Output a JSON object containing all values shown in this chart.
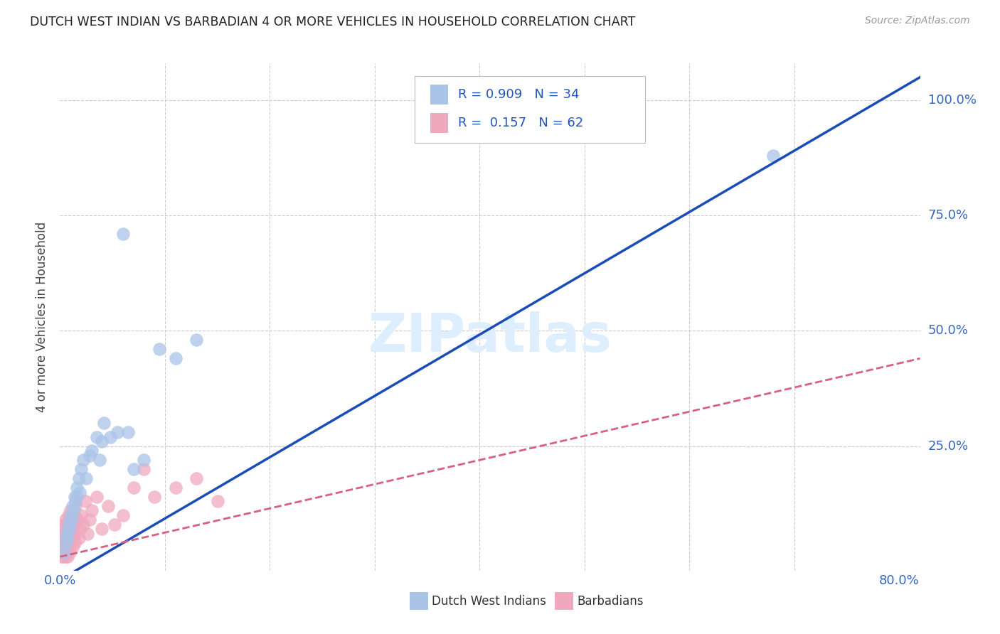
{
  "title": "DUTCH WEST INDIAN VS BARBADIAN 4 OR MORE VEHICLES IN HOUSEHOLD CORRELATION CHART",
  "source": "Source: ZipAtlas.com",
  "ylabel": "4 or more Vehicles in Household",
  "x_ticks": [
    0.0,
    0.1,
    0.2,
    0.3,
    0.4,
    0.5,
    0.6,
    0.7,
    0.8
  ],
  "y_ticks": [
    0.0,
    0.25,
    0.5,
    0.75,
    1.0
  ],
  "xlim": [
    0.0,
    0.82
  ],
  "ylim": [
    -0.02,
    1.08
  ],
  "dwi_color": "#aac4e8",
  "barb_color": "#f0a8be",
  "line_blue_color": "#1a4db8",
  "line_pink_color": "#d86080",
  "grid_color": "#cccccc",
  "background_color": "#ffffff",
  "watermark_color": "#ddeeff",
  "legend_r_dwi": "0.909",
  "legend_n_dwi": "34",
  "legend_r_barb": "0.157",
  "legend_n_barb": "62",
  "legend_label_dwi": "Dutch West Indians",
  "legend_label_barb": "Barbadians",
  "blue_line_x0": 0.0,
  "blue_line_y0": -0.04,
  "blue_line_x1": 0.82,
  "blue_line_y1": 1.05,
  "pink_line_x0": 0.0,
  "pink_line_y0": 0.01,
  "pink_line_x1": 0.82,
  "pink_line_y1": 0.44,
  "dwi_x": [
    0.004,
    0.005,
    0.006,
    0.007,
    0.008,
    0.009,
    0.01,
    0.011,
    0.012,
    0.013,
    0.014,
    0.015,
    0.016,
    0.018,
    0.019,
    0.02,
    0.022,
    0.025,
    0.028,
    0.03,
    0.035,
    0.038,
    0.042,
    0.048,
    0.055,
    0.065,
    0.08,
    0.095,
    0.11,
    0.13,
    0.04,
    0.06,
    0.07,
    0.68
  ],
  "dwi_y": [
    0.02,
    0.04,
    0.06,
    0.05,
    0.08,
    0.07,
    0.1,
    0.09,
    0.12,
    0.11,
    0.14,
    0.13,
    0.16,
    0.18,
    0.15,
    0.2,
    0.22,
    0.18,
    0.23,
    0.24,
    0.27,
    0.22,
    0.3,
    0.27,
    0.28,
    0.28,
    0.22,
    0.46,
    0.44,
    0.48,
    0.26,
    0.71,
    0.2,
    0.88
  ],
  "barb_x": [
    0.001,
    0.001,
    0.002,
    0.002,
    0.002,
    0.003,
    0.003,
    0.003,
    0.003,
    0.004,
    0.004,
    0.004,
    0.004,
    0.005,
    0.005,
    0.005,
    0.005,
    0.006,
    0.006,
    0.006,
    0.007,
    0.007,
    0.007,
    0.008,
    0.008,
    0.008,
    0.009,
    0.009,
    0.01,
    0.01,
    0.01,
    0.011,
    0.011,
    0.012,
    0.012,
    0.013,
    0.013,
    0.014,
    0.014,
    0.015,
    0.015,
    0.016,
    0.017,
    0.018,
    0.019,
    0.02,
    0.022,
    0.024,
    0.026,
    0.028,
    0.03,
    0.035,
    0.04,
    0.046,
    0.052,
    0.06,
    0.07,
    0.08,
    0.09,
    0.11,
    0.13,
    0.15
  ],
  "barb_y": [
    0.01,
    0.03,
    0.02,
    0.04,
    0.06,
    0.01,
    0.03,
    0.05,
    0.07,
    0.02,
    0.04,
    0.06,
    0.08,
    0.01,
    0.03,
    0.05,
    0.09,
    0.02,
    0.04,
    0.07,
    0.01,
    0.05,
    0.08,
    0.03,
    0.06,
    0.1,
    0.02,
    0.07,
    0.04,
    0.08,
    0.11,
    0.05,
    0.09,
    0.03,
    0.07,
    0.05,
    0.1,
    0.04,
    0.08,
    0.06,
    0.12,
    0.14,
    0.09,
    0.05,
    0.07,
    0.1,
    0.08,
    0.13,
    0.06,
    0.09,
    0.11,
    0.14,
    0.07,
    0.12,
    0.08,
    0.1,
    0.16,
    0.2,
    0.14,
    0.16,
    0.18,
    0.13
  ]
}
